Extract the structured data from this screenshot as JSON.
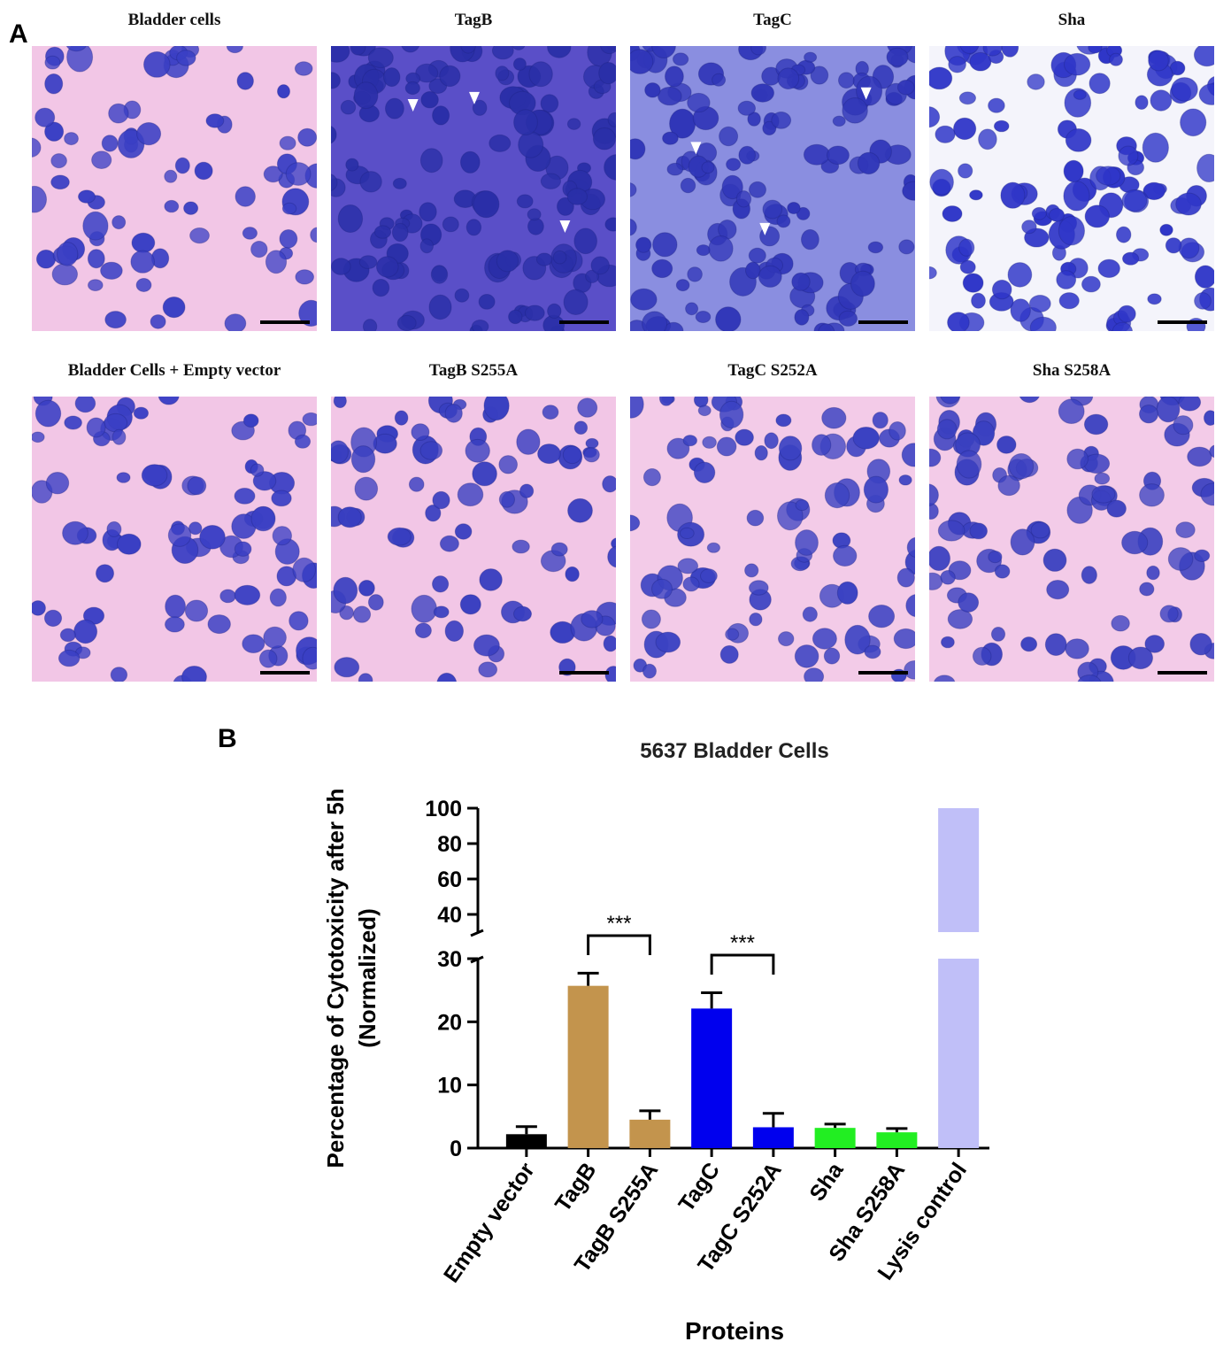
{
  "panel_a": {
    "letter": "A",
    "images": [
      {
        "title": "Bladder cells",
        "bg": "#f2c6e6",
        "cell": "#3a3fc4",
        "density": 0.55,
        "arrows": 0
      },
      {
        "title": "TagB",
        "bg": "#5a4fc8",
        "cell": "#2a2fa8",
        "density": 1.0,
        "arrows": 3
      },
      {
        "title": "TagC",
        "bg": "#8a8ee0",
        "cell": "#3036b8",
        "density": 0.95,
        "arrows": 3
      },
      {
        "title": "Sha",
        "bg": "#f4f4fb",
        "cell": "#2f36c8",
        "density": 0.9,
        "arrows": 0
      },
      {
        "title": "Bladder Cells + Empty vector",
        "bg": "#f2c6e6",
        "cell": "#3a3fc4",
        "density": 0.6,
        "arrows": 0
      },
      {
        "title": "TagB S255A",
        "bg": "#f2c6e6",
        "cell": "#383ec0",
        "density": 0.6,
        "arrows": 0
      },
      {
        "title": "TagC S252A",
        "bg": "#f3cbe8",
        "cell": "#3b42c2",
        "density": 0.65,
        "arrows": 0
      },
      {
        "title": "Sha S258A",
        "bg": "#f3cbe8",
        "cell": "#3a40c0",
        "density": 0.7,
        "arrows": 0
      }
    ]
  },
  "panel_b": {
    "letter": "B"
  },
  "chart_data": {
    "type": "bar",
    "title": "5637 Bladder Cells",
    "xlabel": "Proteins",
    "ylabel": "Percentage of Cytotoxicity after 5h (Normalized)",
    "categories": [
      "Empty vector",
      "TagB",
      "TagB S255A",
      "TagC",
      "TagC S252A",
      "Sha",
      "Sha S258A",
      "Lysis control"
    ],
    "values": [
      2.2,
      25.7,
      4.5,
      22.1,
      3.3,
      3.2,
      2.5,
      100
    ],
    "errors": [
      1.2,
      2.0,
      1.4,
      2.5,
      2.2,
      0.6,
      0.6,
      0
    ],
    "colors": [
      "#000000",
      "#c3944d",
      "#c3944d",
      "#0000ee",
      "#0000ee",
      "#22ee22",
      "#22ee22",
      "#c0bff8"
    ],
    "broken_axis": {
      "lower_range": [
        0,
        30
      ],
      "upper_range": [
        30,
        100
      ]
    },
    "lower_ticks": [
      "0",
      "10",
      "20",
      "30"
    ],
    "upper_ticks": [
      "40",
      "60",
      "80",
      "100"
    ],
    "significance": [
      {
        "from": "TagB",
        "to": "TagB S255A",
        "label": "***"
      },
      {
        "from": "TagC",
        "to": "TagC S252A",
        "label": "***"
      }
    ],
    "grid": false,
    "legend": "none"
  }
}
